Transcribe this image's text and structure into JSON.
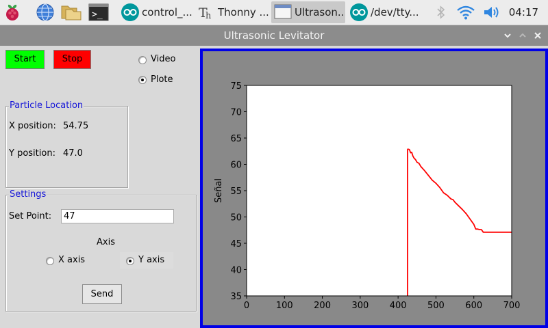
{
  "taskbar": {
    "launchers": [
      {
        "icon": "raspberry-pi-menu-icon"
      },
      {
        "icon": "web-browser-icon"
      },
      {
        "icon": "file-manager-icon"
      },
      {
        "icon": "terminal-icon"
      }
    ],
    "tasks": [
      {
        "label": "control_...",
        "icon": "arduino-icon"
      },
      {
        "label": "Thonny  ...",
        "icon": "thonny-icon"
      },
      {
        "label": "Ultrason...",
        "icon": "window-icon"
      },
      {
        "label": "/dev/tty...",
        "icon": "arduino-icon"
      }
    ],
    "clock": "04:17"
  },
  "window": {
    "title": "Ultrasonic Levitator"
  },
  "controls": {
    "start_label": "Start",
    "stop_label": "Stop",
    "start_color": "#00ff00",
    "stop_color": "#ff0000",
    "video_label": "Video",
    "plote_label": "Plote",
    "selected_view": "Plote"
  },
  "particle_location": {
    "title": "Particle Location",
    "x_label": "X position:",
    "x_value": "54.75",
    "y_label": "Y position:",
    "y_value": "47.0"
  },
  "settings": {
    "title": "Settings",
    "set_point_label": "Set Point:",
    "set_point_value": "47",
    "axis_label": "Axis",
    "x_axis_label": "X axis",
    "y_axis_label": "Y axis",
    "selected_axis": "Y axis",
    "send_label": "Send"
  },
  "chart_data": {
    "type": "line",
    "title": "",
    "xlabel": "",
    "ylabel": "Señal",
    "xlim": [
      0,
      700
    ],
    "ylim": [
      35,
      75
    ],
    "xticks": [
      0,
      100,
      200,
      300,
      400,
      500,
      600,
      700
    ],
    "yticks": [
      35,
      40,
      45,
      50,
      55,
      60,
      65,
      70,
      75
    ],
    "grid": false,
    "series": [
      {
        "color": "#ff0000",
        "x": [
          425,
          425,
          426,
          430,
          433,
          436,
          439,
          442,
          446,
          450,
          455,
          460,
          470,
          480,
          490,
          500,
          510,
          520,
          530,
          540,
          545,
          550,
          560,
          570,
          580,
          590,
          600,
          605,
          610,
          615,
          620,
          625,
          630,
          700
        ],
        "y": [
          35,
          62.8,
          62.9,
          62.8,
          62.2,
          62.3,
          61.6,
          61.2,
          60.9,
          60.4,
          60.2,
          59.6,
          58.8,
          57.9,
          57.0,
          56.4,
          55.6,
          54.6,
          54.1,
          53.4,
          53.3,
          52.8,
          52.1,
          51.4,
          50.6,
          49.6,
          48.6,
          47.7,
          47.7,
          47.6,
          47.6,
          47.1,
          47.1,
          47.1
        ]
      }
    ]
  }
}
